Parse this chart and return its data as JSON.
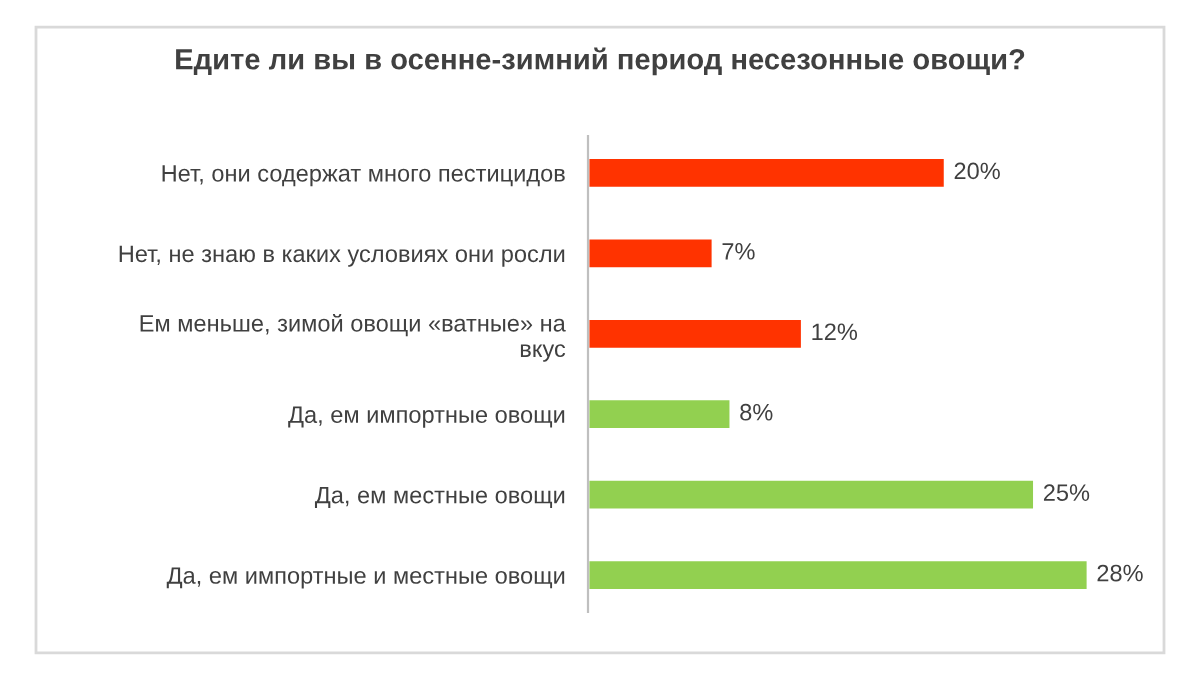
{
  "chart_data": {
    "type": "bar",
    "orientation": "horizontal",
    "title": "Едите ли вы в осенне-зимний период несезонные овощи?",
    "categories": [
      "Нет, они содержат много пестицидов",
      "Нет, не знаю в каких условиях они росли",
      "Ем меньше, зимой овощи «ватные» на\nвкус",
      "Да, ем импортные овощи",
      "Да, ем местные овощи",
      "Да, ем импортные и местные овощи"
    ],
    "values": [
      20,
      7,
      12,
      8,
      25,
      28
    ],
    "colors": [
      "#ff3300",
      "#ff3300",
      "#ff3300",
      "#92d050",
      "#92d050",
      "#92d050"
    ],
    "value_labels": [
      "20%",
      "7%",
      "12%",
      "8%",
      "25%",
      "28%"
    ],
    "grid": false,
    "legend": false
  }
}
